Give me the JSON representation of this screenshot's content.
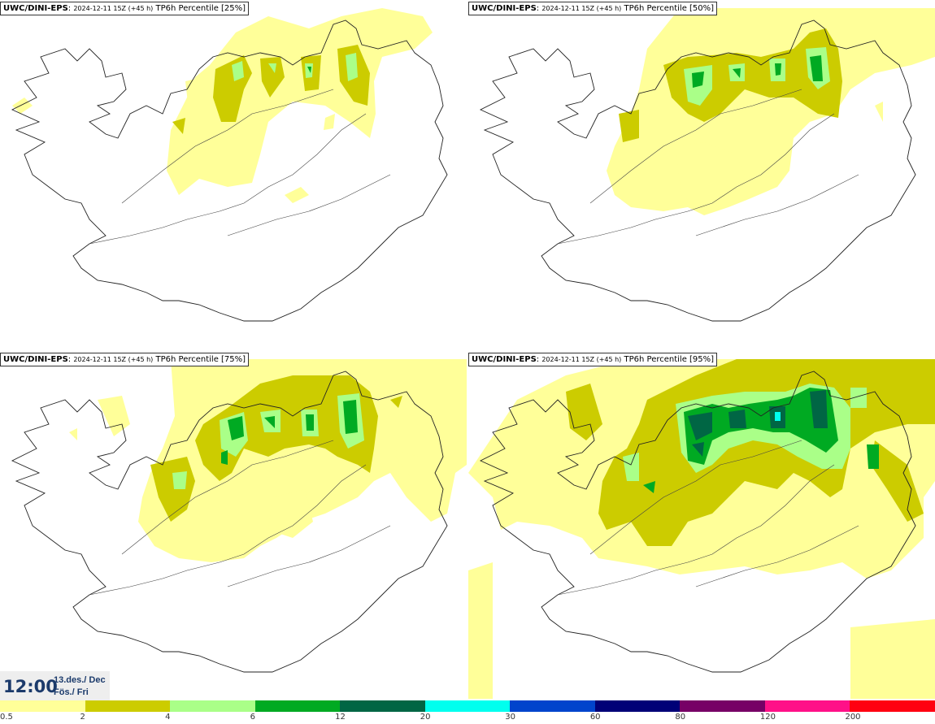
{
  "panels": [
    {
      "model": "UWC/DINI-EPS",
      "run": "2024-12-11 15Z (+45 h)",
      "field": "TP6h Percentile [25%]",
      "percentile": 25
    },
    {
      "model": "UWC/DINI-EPS",
      "run": "2024-12-11 15Z (+45 h)",
      "field": "TP6h Percentile [50%]",
      "percentile": 50
    },
    {
      "model": "UWC/DINI-EPS",
      "run": "2024-12-11 15Z (+45 h)",
      "field": "TP6h Percentile [75%]",
      "percentile": 75
    },
    {
      "model": "UWC/DINI-EPS",
      "run": "2024-12-11 15Z (+45 h)",
      "field": "TP6h Percentile [95%]",
      "percentile": 95
    }
  ],
  "valid_time": {
    "hour": "12:00",
    "date": "13.des./ Dec",
    "weekday": "Fös./ Fri"
  },
  "legend": {
    "ticks": [
      "0.5",
      "2",
      "4",
      "6",
      "12",
      "20",
      "30",
      "60",
      "80",
      "120",
      "200"
    ],
    "colors": [
      "#ffff99",
      "#cccc00",
      "#aaff88",
      "#00aa22",
      "#006644",
      "#00ffee",
      "#0044cc",
      "#000077",
      "#770066",
      "#ff1188",
      "#ff0011"
    ]
  }
}
